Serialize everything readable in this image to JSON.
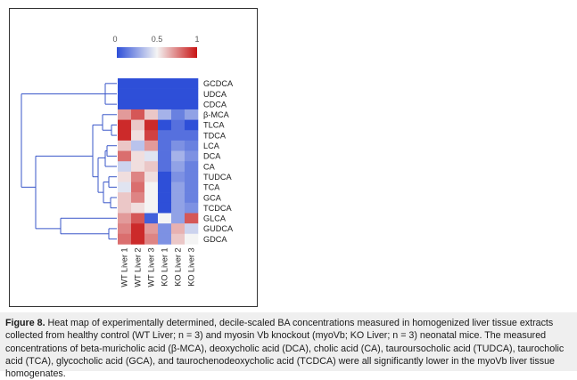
{
  "chart_data": {
    "type": "heatmap",
    "colorbar": {
      "ticks": [
        "0",
        "0.5",
        "1"
      ],
      "low_color": "#2e4fd8",
      "mid_color": "#f4f4f4",
      "high_color": "#c81414"
    },
    "rows": [
      "GCDCA",
      "UDCA",
      "CDCA",
      "β-MCA",
      "TLCA",
      "TDCA",
      "LCA",
      "DCA",
      "CA",
      "TUDCA",
      "TCA",
      "GCA",
      "TCDCA",
      "GLCA",
      "GUDCA",
      "GDCA"
    ],
    "columns": [
      "WT Liver 1",
      "WT Liver 2",
      "WT Liver 3",
      "KO Liver 1",
      "KO Liver 2",
      "KO Liver 3"
    ],
    "values": [
      [
        0.0,
        0.0,
        0.0,
        0.0,
        0.0,
        0.0
      ],
      [
        0.0,
        0.0,
        0.0,
        0.0,
        0.0,
        0.0
      ],
      [
        0.0,
        0.0,
        0.0,
        0.0,
        0.0,
        0.0
      ],
      [
        0.7,
        0.85,
        0.6,
        0.3,
        0.15,
        0.25
      ],
      [
        0.95,
        0.6,
        0.95,
        0.0,
        0.1,
        0.0
      ],
      [
        0.95,
        0.55,
        0.9,
        0.1,
        0.1,
        0.1
      ],
      [
        0.6,
        0.35,
        0.7,
        0.1,
        0.2,
        0.15
      ],
      [
        0.8,
        0.55,
        0.45,
        0.1,
        0.3,
        0.2
      ],
      [
        0.4,
        0.55,
        0.6,
        0.1,
        0.25,
        0.15
      ],
      [
        0.55,
        0.75,
        0.55,
        0.0,
        0.2,
        0.15
      ],
      [
        0.45,
        0.8,
        0.5,
        0.0,
        0.25,
        0.15
      ],
      [
        0.6,
        0.75,
        0.5,
        0.0,
        0.25,
        0.15
      ],
      [
        0.6,
        0.55,
        0.5,
        0.0,
        0.25,
        0.2
      ],
      [
        0.7,
        0.85,
        0.05,
        0.5,
        0.25,
        0.85
      ],
      [
        0.75,
        0.95,
        0.7,
        0.2,
        0.65,
        0.4
      ],
      [
        0.8,
        0.95,
        0.75,
        0.2,
        0.6,
        0.5
      ]
    ],
    "dendrogram": {
      "row_order_groups": [
        [
          0,
          1,
          2
        ],
        [
          3,
          4,
          5,
          6,
          7,
          8,
          9,
          10,
          11,
          12
        ],
        [
          13,
          14,
          15
        ]
      ]
    }
  },
  "caption": {
    "label": "Figure 8.",
    "text": " Heat map of experimentally determined, decile-scaled BA concentrations measured in homogenized liver tissue extracts collected from healthy control (WT Liver; n = 3) and myosin Vb knockout (myoVb; KO Liver; n = 3) neonatal mice. The measured concentrations of beta-muricholic acid (β-MCA), deoxycholic acid (DCA), cholic acid (CA), tauroursocholic acid (TUDCA), taurocholic acid (TCA), glycocholic acid (GCA), and taurochenodeoxycholic acid (TCDCA) were all significantly lower in the myoVb liver tissue homogenates."
  }
}
